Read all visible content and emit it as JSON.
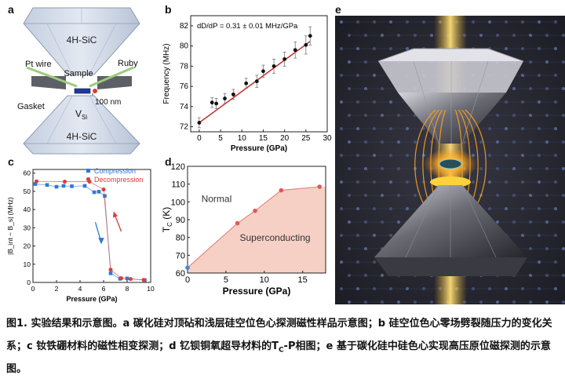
{
  "panel_a": {
    "label": "a",
    "top_anvil": "4H-SiC",
    "bottom_anvil": "4H-SiC",
    "pt_wire": "Pt wire",
    "ruby": "Ruby",
    "sample": "Sample",
    "gasket": "Gasket",
    "depth": "100 nm",
    "vsi_main": "V",
    "vsi_sub": "Si"
  },
  "panel_e": {
    "label": "e"
  },
  "chart_data": [
    {
      "id": "b",
      "panel_label": "b",
      "type": "scatter",
      "annotation": "dD/dP = 0.31 ± 0.01 MHz/GPa",
      "xlabel": "Pressure (GPa)",
      "ylabel": "Frequency (MHz)",
      "xlim": [
        -2,
        30
      ],
      "ylim": [
        71.5,
        83
      ],
      "xticks": [
        0,
        5,
        10,
        15,
        20,
        25,
        30
      ],
      "yticks": [
        72,
        74,
        76,
        78,
        80,
        82
      ],
      "x": [
        0,
        3,
        4,
        6,
        8,
        11,
        13.5,
        15,
        17.5,
        20,
        22.5,
        25,
        26
      ],
      "y": [
        72.4,
        74.4,
        74.3,
        74.8,
        75.2,
        76.3,
        76.5,
        77.5,
        78.0,
        78.7,
        79.6,
        80.1,
        81.0
      ],
      "err": [
        0.5,
        0.5,
        0.5,
        0.5,
        0.5,
        0.5,
        0.6,
        0.6,
        0.7,
        0.7,
        0.8,
        0.9,
        0.9
      ],
      "fit": {
        "x": [
          0,
          26
        ],
        "y": [
          72.4,
          80.46
        ]
      },
      "point_color": "#111111",
      "fit_color": "#cc2a2a"
    },
    {
      "id": "c",
      "panel_label": "c",
      "type": "scatter",
      "xlabel": "Pressure (GPa)",
      "ylabel": "|B_int − B_s| (MHz)",
      "xlim": [
        0,
        10
      ],
      "ylim": [
        0,
        62
      ],
      "xticks": [
        0,
        2,
        4,
        6,
        8,
        10
      ],
      "yticks": [
        0,
        10,
        20,
        30,
        40,
        50,
        60
      ],
      "series": [
        {
          "name": "Compression",
          "color": "#2b7bd6",
          "marker": "square",
          "x": [
            0.2,
            1.2,
            2.0,
            2.6,
            3.3,
            4.4,
            5.2,
            5.6,
            6.1,
            6.6,
            7.4,
            8.0,
            9.5
          ],
          "y": [
            54.0,
            53.5,
            52.5,
            53.0,
            52.8,
            53.0,
            49.5,
            49.8,
            47.5,
            5.0,
            2.0,
            2.2,
            1.3
          ]
        },
        {
          "name": "Decompression",
          "color": "#dd3b3b",
          "marker": "circle",
          "x": [
            0.3,
            2.7,
            4.8,
            6.0,
            6.6,
            7.5,
            8.3,
            9.4
          ],
          "y": [
            55.5,
            55.3,
            55.3,
            51.0,
            7.0,
            2.3,
            1.9,
            1.4
          ]
        }
      ]
    },
    {
      "id": "d",
      "panel_label": "d",
      "type": "area",
      "xlabel": "Pressure (GPa)",
      "ylabel_main": "T",
      "ylabel_sub": "C",
      "ylabel_unit": " (K)",
      "xlim": [
        0,
        18
      ],
      "ylim": [
        60,
        120
      ],
      "xticks": [
        0,
        5,
        10,
        15
      ],
      "yticks": [
        60,
        70,
        80,
        90,
        100,
        110,
        120
      ],
      "x": [
        0,
        6.5,
        8.8,
        12.2,
        17.2
      ],
      "y": [
        63,
        88,
        95,
        106.5,
        108.5
      ],
      "first_point_color": "#4a86c8",
      "point_color": "#e05a55",
      "fill_color": "#f6cbbf",
      "line_color": "#e08a82",
      "region_upper": "Normal",
      "region_lower": "Superconducting"
    }
  ],
  "caption": {
    "prefix": "图1. 实验结果和示意图。a 碳化硅对顶砧和浅层硅空位色心探测磁性样品示意图；b 硅空位色心零场劈裂随压力的变化关系；c 钕铁硼材料的磁性相变探测；d 钇钡铜氧超导材料的T",
    "sub": "C",
    "suffix": "-P相图；e 基于碳化硅中硅色心实现高压原位磁探测的示意图。"
  }
}
